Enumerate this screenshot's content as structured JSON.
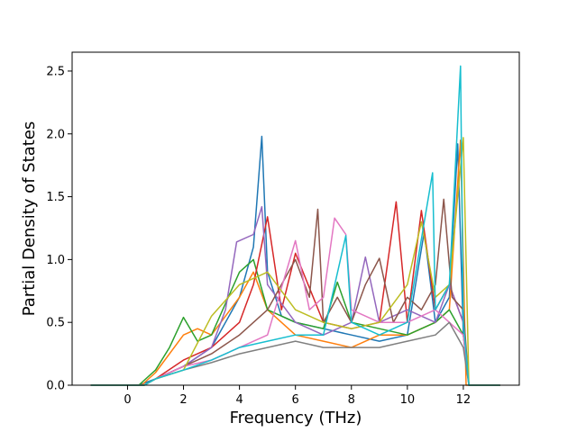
{
  "chart_data": {
    "type": "line",
    "title": "",
    "xlabel": "Frequency (THz)",
    "ylabel": "Partial Density of States",
    "xlim": [
      -1.98,
      14.0
    ],
    "ylim": [
      0.0,
      2.65
    ],
    "xticks": [
      0,
      2,
      4,
      6,
      8,
      10,
      12
    ],
    "yticks": [
      0.0,
      0.5,
      1.0,
      1.5,
      2.0,
      2.5
    ],
    "xtick_labels": [
      "0",
      "2",
      "4",
      "6",
      "8",
      "10",
      "12"
    ],
    "ytick_labels": [
      "0.0",
      "0.5",
      "1.0",
      "1.5",
      "2.0",
      "2.5"
    ],
    "grid": false,
    "legend": "none",
    "colors": [
      "#1f77b4",
      "#ff7f0e",
      "#2ca02c",
      "#d62728",
      "#9467bd",
      "#8c564b",
      "#e377c2",
      "#7f7f7f",
      "#bcbd22",
      "#17becf"
    ],
    "series": [
      {
        "color": "#1f77b4",
        "x": [
          -1.3,
          0.4,
          1.0,
          2.0,
          3.0,
          4.0,
          4.5,
          4.8,
          5.0,
          5.5,
          6.0,
          7.0,
          8.0,
          9.0,
          10.0,
          10.6,
          11.0,
          11.5,
          11.8,
          12.0,
          12.2,
          13.3
        ],
        "y": [
          0,
          0,
          0.05,
          0.15,
          0.3,
          0.7,
          1.1,
          1.98,
          0.9,
          0.55,
          0.5,
          0.45,
          0.4,
          0.35,
          0.4,
          1.22,
          0.5,
          0.7,
          1.92,
          0.4,
          0,
          0
        ]
      },
      {
        "color": "#ff7f0e",
        "x": [
          -1.3,
          0.5,
          1.0,
          2.0,
          2.5,
          3.0,
          4.0,
          4.5,
          5.0,
          6.0,
          7.0,
          8.0,
          9.0,
          10.0,
          11.0,
          11.5,
          11.9,
          12.1,
          13.3
        ],
        "y": [
          0,
          0,
          0.1,
          0.4,
          0.45,
          0.4,
          0.7,
          0.9,
          0.6,
          0.4,
          0.35,
          0.3,
          0.4,
          0.4,
          0.5,
          0.6,
          1.95,
          0,
          0
        ]
      },
      {
        "color": "#2ca02c",
        "x": [
          -1.3,
          0.4,
          1.0,
          1.5,
          2.0,
          2.5,
          3.0,
          4.0,
          4.5,
          5.0,
          6.0,
          7.0,
          7.5,
          8.0,
          9.0,
          10.0,
          11.0,
          11.5,
          12.0,
          12.2,
          13.3
        ],
        "y": [
          0,
          0,
          0.12,
          0.3,
          0.54,
          0.35,
          0.4,
          0.9,
          1.0,
          0.6,
          0.5,
          0.45,
          0.82,
          0.5,
          0.45,
          0.4,
          0.5,
          0.6,
          0.4,
          0,
          0
        ]
      },
      {
        "color": "#d62728",
        "x": [
          -1.3,
          0.6,
          1.0,
          2.0,
          3.0,
          4.0,
          4.5,
          5.0,
          5.5,
          6.0,
          7.0,
          8.0,
          9.0,
          9.6,
          10.0,
          10.5,
          11.0,
          11.5,
          12.0,
          12.2,
          13.3
        ],
        "y": [
          0,
          0,
          0.05,
          0.2,
          0.3,
          0.5,
          0.8,
          1.34,
          0.6,
          1.05,
          0.5,
          0.45,
          0.5,
          1.46,
          0.5,
          1.39,
          0.6,
          0.8,
          0.5,
          0,
          0
        ]
      },
      {
        "color": "#9467bd",
        "x": [
          -1.3,
          0.6,
          1.0,
          2.0,
          3.0,
          3.5,
          3.9,
          4.5,
          4.8,
          5.0,
          6.0,
          7.0,
          8.0,
          8.5,
          9.0,
          10.0,
          11.0,
          11.5,
          12.0,
          12.2,
          13.3
        ],
        "y": [
          0,
          0,
          0.05,
          0.15,
          0.3,
          0.6,
          1.14,
          1.2,
          1.42,
          0.8,
          0.5,
          0.4,
          0.5,
          1.02,
          0.5,
          0.6,
          0.5,
          0.8,
          0.5,
          0,
          0
        ]
      },
      {
        "color": "#8c564b",
        "x": [
          -1.3,
          0.6,
          1.0,
          2.0,
          3.0,
          4.0,
          5.0,
          5.5,
          6.0,
          6.5,
          6.8,
          7.0,
          7.5,
          8.0,
          8.5,
          9.0,
          9.5,
          10.0,
          10.5,
          11.0,
          11.3,
          11.6,
          12.0,
          12.2,
          13.3
        ],
        "y": [
          0,
          0,
          0.05,
          0.15,
          0.25,
          0.4,
          0.6,
          0.8,
          1.0,
          0.7,
          1.4,
          0.5,
          0.7,
          0.5,
          0.8,
          1.01,
          0.5,
          0.7,
          0.6,
          0.8,
          1.48,
          0.7,
          0.6,
          0,
          0
        ]
      },
      {
        "color": "#e377c2",
        "x": [
          -1.3,
          0.6,
          1.0,
          2.0,
          3.0,
          4.0,
          5.0,
          6.0,
          6.5,
          7.0,
          7.4,
          7.8,
          8.0,
          9.0,
          10.0,
          11.0,
          11.5,
          12.0,
          12.2,
          13.3
        ],
        "y": [
          0,
          0,
          0.05,
          0.15,
          0.2,
          0.3,
          0.4,
          1.15,
          0.6,
          0.7,
          1.33,
          1.2,
          0.6,
          0.5,
          0.5,
          0.6,
          0.5,
          0.4,
          0,
          0
        ]
      },
      {
        "color": "#7f7f7f",
        "x": [
          -1.3,
          0.6,
          1.0,
          2.0,
          3.0,
          4.0,
          5.0,
          6.0,
          7.0,
          8.0,
          9.0,
          10.0,
          11.0,
          11.5,
          12.0,
          12.2,
          13.3
        ],
        "y": [
          0,
          0,
          0.05,
          0.12,
          0.18,
          0.25,
          0.3,
          0.35,
          0.3,
          0.3,
          0.3,
          0.35,
          0.4,
          0.5,
          0.3,
          0,
          0
        ]
      },
      {
        "color": "#bcbd22",
        "x": [
          -1.3,
          0.6,
          1.0,
          2.0,
          3.0,
          4.0,
          5.0,
          6.0,
          7.0,
          8.0,
          9.0,
          10.0,
          10.5,
          11.0,
          11.5,
          12.0,
          12.2,
          13.3
        ],
        "y": [
          0,
          0,
          0.05,
          0.12,
          0.55,
          0.8,
          0.9,
          0.6,
          0.5,
          0.45,
          0.5,
          0.8,
          1.3,
          0.7,
          0.8,
          1.97,
          0,
          0
        ]
      },
      {
        "color": "#17becf",
        "x": [
          -1.3,
          0.6,
          1.0,
          2.0,
          3.0,
          4.0,
          5.0,
          6.0,
          7.0,
          7.8,
          8.0,
          9.0,
          10.0,
          10.9,
          11.0,
          11.5,
          11.9,
          12.0,
          12.2,
          13.3
        ],
        "y": [
          0,
          0,
          0.05,
          0.12,
          0.2,
          0.3,
          0.35,
          0.4,
          0.4,
          1.19,
          0.5,
          0.4,
          0.5,
          1.69,
          0.6,
          0.8,
          2.54,
          0.5,
          0,
          0
        ]
      }
    ]
  }
}
